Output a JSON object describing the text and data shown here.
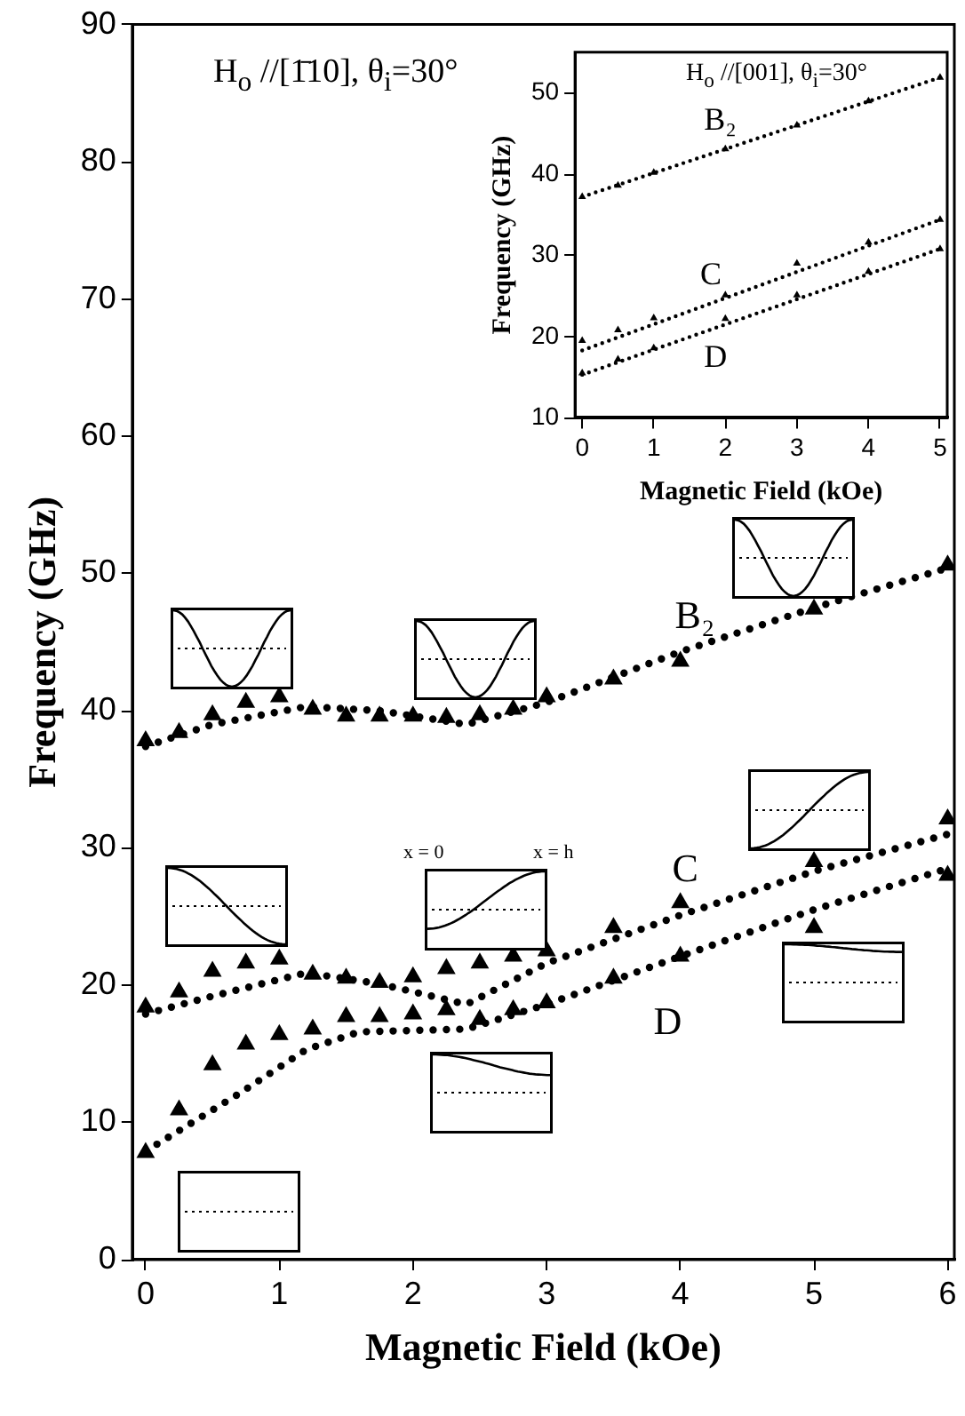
{
  "chart_data": [
    {
      "type": "line",
      "xlabel": "Magnetic Field (kOe)",
      "ylabel": "Frequency (GHz)",
      "annotations": [
        "H$_{o}$ //[1̄10], θ$_{i}$=30°",
        "x = 0",
        "x = h"
      ],
      "xlim": [
        -0.1,
        6.05
      ],
      "xticks": [
        0,
        1,
        2,
        3,
        4,
        5,
        6
      ],
      "ylim": [
        0,
        90
      ],
      "yticks": [
        0,
        10,
        20,
        30,
        40,
        50,
        60,
        70,
        80,
        90
      ],
      "grid": false,
      "legend": false,
      "series": [
        {
          "name": "B₂",
          "type": "line",
          "color": "#000000",
          "marker": "none",
          "line_style": "dotted",
          "x": [
            0,
            0.5,
            1.2,
            1.75,
            2.4,
            3,
            4,
            5,
            6
          ],
          "values": [
            37.4,
            39.0,
            40.3,
            40.0,
            39.0,
            40.6,
            44.3,
            47.5,
            50.4
          ]
        },
        {
          "name": "C",
          "type": "line",
          "color": "#000000",
          "marker": "none",
          "line_style": "dotted",
          "x": [
            0,
            0.5,
            1.2,
            1.75,
            2.4,
            3,
            4,
            5,
            6
          ],
          "values": [
            17.9,
            19.2,
            20.9,
            20.1,
            18.6,
            21.6,
            25.1,
            28.3,
            31.0
          ]
        },
        {
          "name": "D",
          "type": "line",
          "color": "#000000",
          "marker": "none",
          "line_style": "dotted",
          "x": [
            0,
            0.4,
            0.7,
            1.2,
            1.6,
            2.4,
            3,
            4,
            5,
            6
          ],
          "values": [
            7.9,
            10.3,
            12.1,
            15.3,
            16.6,
            16.8,
            18.6,
            22.1,
            25.5,
            28.5
          ]
        },
        {
          "type": "scatter",
          "color": "#000000",
          "marker": "triangle",
          "x": [
            0,
            0.25,
            0.5,
            0.75,
            1,
            1.25,
            1.5,
            1.75,
            2,
            2.25,
            2.5,
            2.75,
            3,
            3.5,
            4,
            5,
            6
          ],
          "values": [
            37.8,
            38.4,
            39.7,
            40.6,
            41.0,
            40.1,
            39.6,
            39.6,
            39.6,
            39.5,
            39.7,
            40.1,
            41.0,
            42.3,
            43.6,
            47.4,
            50.6
          ]
        },
        {
          "type": "scatter",
          "color": "#000000",
          "marker": "triangle",
          "x": [
            0,
            0.25,
            0.5,
            0.75,
            1,
            1.25,
            1.5,
            1.75,
            2,
            2.25,
            2.5,
            2.75,
            3,
            3.5,
            4,
            5,
            6
          ],
          "values": [
            18.4,
            19.5,
            21.0,
            21.6,
            21.9,
            20.8,
            20.5,
            20.2,
            20.6,
            21.2,
            21.6,
            22.1,
            22.5,
            24.2,
            26.0,
            29.0,
            32.1
          ]
        },
        {
          "type": "scatter",
          "color": "#000000",
          "marker": "triangle",
          "x": [
            0,
            0.25,
            0.5,
            0.75,
            1,
            1.25,
            1.5,
            1.75,
            2,
            2.25,
            2.5,
            2.75,
            3,
            3.5,
            4,
            5,
            6
          ],
          "values": [
            7.8,
            10.9,
            14.2,
            15.7,
            16.4,
            16.8,
            17.7,
            17.7,
            17.9,
            18.2,
            17.5,
            18.2,
            18.7,
            20.5,
            22.1,
            24.2,
            28.0
          ]
        }
      ]
    },
    {
      "type": "line",
      "xlabel": "Magnetic Field (kOe)",
      "ylabel": "Frequency (GHz)",
      "annotations": [
        "H$_{o}$ //[001], θ$_{i}$=30°"
      ],
      "xlim": [
        -0.1,
        5.1
      ],
      "xticks": [
        0,
        1,
        2,
        3,
        4,
        5
      ],
      "ylim": [
        10,
        55
      ],
      "yticks": [
        10,
        20,
        30,
        40,
        50
      ],
      "grid": false,
      "legend": false,
      "series": [
        {
          "name": "B₂",
          "type": "line",
          "color": "#000000",
          "marker": "none",
          "line_style": "dotted",
          "x": [
            0,
            5
          ],
          "values": [
            37.2,
            51.9
          ]
        },
        {
          "name": "C",
          "type": "line",
          "color": "#000000",
          "marker": "none",
          "line_style": "dotted",
          "x": [
            0,
            5
          ],
          "values": [
            18.3,
            34.4
          ]
        },
        {
          "name": "D",
          "type": "line",
          "color": "#000000",
          "marker": "none",
          "line_style": "dotted",
          "x": [
            0,
            5
          ],
          "values": [
            15.3,
            30.8
          ]
        },
        {
          "type": "scatter",
          "color": "#000000",
          "marker": "triangle",
          "x": [
            0,
            0.5,
            1,
            2,
            3,
            4,
            5
          ],
          "values": [
            37.2,
            38.6,
            40.2,
            43.1,
            46.0,
            49.0,
            51.9
          ]
        },
        {
          "type": "scatter",
          "color": "#000000",
          "marker": "triangle",
          "x": [
            0,
            0.5,
            1,
            2,
            3,
            4,
            5
          ],
          "values": [
            19.5,
            20.8,
            22.3,
            25.1,
            29.0,
            31.6,
            34.4
          ]
        },
        {
          "type": "scatter",
          "color": "#000000",
          "marker": "triangle",
          "x": [
            0,
            0.5,
            1,
            2,
            3,
            4,
            5
          ],
          "values": [
            15.5,
            17.2,
            18.6,
            22.2,
            25.1,
            28.0,
            30.8
          ]
        }
      ]
    }
  ]
}
